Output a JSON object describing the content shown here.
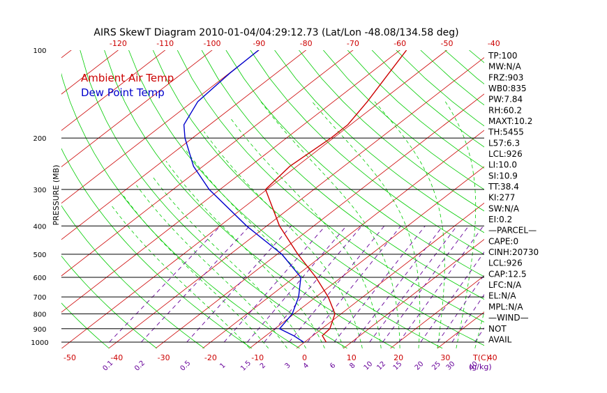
{
  "chart_data": {
    "type": "line",
    "title": "AIRS SkewT Diagram 2010-01-04/04:29:12.73 (Lat/Lon -48.08/134.58 deg)",
    "ylabel": "PRESSURE (MB)",
    "xlabel": "T(C)",
    "mixing_ratio_label": "(g/kg)",
    "pressure_levels": [
      100,
      200,
      300,
      400,
      500,
      600,
      700,
      800,
      900,
      1000
    ],
    "temp_bottom_ticks": [
      -50,
      -40,
      -30,
      -20,
      -10,
      0,
      10,
      20,
      30,
      40
    ],
    "temp_top_ticks": [
      -120,
      -110,
      -100,
      -90,
      -80,
      -70,
      -60,
      -50,
      -40
    ],
    "mixing_ratio_ticks": [
      "0.1",
      "0.2",
      "0.5",
      "1",
      "1.5",
      "2",
      "3",
      "4",
      "6",
      "8",
      "10",
      "12",
      "15",
      "20",
      "25",
      "30",
      "40"
    ],
    "legend": [
      "Ambient Air Temp",
      "Dew Point Temp"
    ],
    "colors": {
      "temperature": "#cc0000",
      "dewpoint": "#0000cc",
      "isotherm": "#cc0000",
      "dry_adiabat": "#00cc00",
      "moist_adiabat": "#00cc00",
      "mixing_ratio": "#660099",
      "pressure_line": "#000000",
      "tick_red": "#cc0000",
      "tick_purple": "#660099"
    },
    "series": [
      {
        "name": "Ambient Air Temp",
        "points": [
          {
            "p": 1000,
            "t": 4.6
          },
          {
            "p": 950,
            "t": 2.0
          },
          {
            "p": 900,
            "t": 1.7
          },
          {
            "p": 800,
            "t": -1.3
          },
          {
            "p": 700,
            "t": -7.4
          },
          {
            "p": 600,
            "t": -15.4
          },
          {
            "p": 500,
            "t": -25.6
          },
          {
            "p": 400,
            "t": -37.3
          },
          {
            "p": 300,
            "t": -50.3
          },
          {
            "p": 250,
            "t": -51.5
          },
          {
            "p": 200,
            "t": -50.5
          },
          {
            "p": 180,
            "t": -50.6
          },
          {
            "p": 150,
            "t": -52.8
          },
          {
            "p": 120,
            "t": -56.0
          },
          {
            "p": 100,
            "t": -58.6
          }
        ]
      },
      {
        "name": "Dew Point Temp",
        "points": [
          {
            "p": 1000,
            "t": -0.2
          },
          {
            "p": 950,
            "t": -4.1
          },
          {
            "p": 900,
            "t": -9.0
          },
          {
            "p": 800,
            "t": -10.4
          },
          {
            "p": 700,
            "t": -13.7
          },
          {
            "p": 600,
            "t": -18.6
          },
          {
            "p": 500,
            "t": -29.0
          },
          {
            "p": 400,
            "t": -44.3
          },
          {
            "p": 300,
            "t": -62.3
          },
          {
            "p": 250,
            "t": -72.0
          },
          {
            "p": 200,
            "t": -81.6
          },
          {
            "p": 180,
            "t": -85.5
          },
          {
            "p": 150,
            "t": -88.9
          },
          {
            "p": 120,
            "t": -89.9
          },
          {
            "p": 100,
            "t": -90.1
          }
        ]
      }
    ],
    "indices": [
      "TP:100",
      "MW:N/A",
      "FRZ:903",
      "WB0:835",
      "PW:7.84",
      "RH:60.2",
      "MAXT:10.2",
      "TH:5455",
      "L57:6.3",
      "LCL:926",
      "LI:10.0",
      "SI:10.9",
      "TT:38.4",
      "KI:277",
      "SW:N/A",
      "EI:0.2",
      "—PARCEL—",
      "CAPE:0",
      "CINH:20730",
      "LCL:926",
      "CAP:12.5",
      "LFC:N/A",
      "EL:N/A",
      "MPL:N/A",
      "—WIND—",
      "NOT",
      "AVAIL"
    ]
  }
}
